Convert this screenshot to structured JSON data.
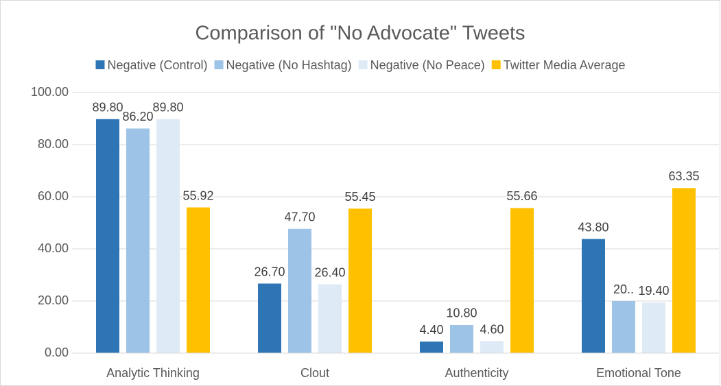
{
  "chart_data": {
    "type": "bar",
    "title": "Comparison of \"No Advocate\" Tweets",
    "categories": [
      "Analytic Thinking",
      "Clout",
      "Authenticity",
      "Emotional Tone"
    ],
    "series": [
      {
        "name": "Negative (Control)",
        "color": "#2e75b6",
        "values": [
          89.8,
          26.7,
          4.4,
          43.8
        ],
        "value_labels": [
          "89.80",
          "26.70",
          "4.40",
          "43.80"
        ]
      },
      {
        "name": "Negative (No Hashtag)",
        "color": "#9dc3e6",
        "values": [
          86.2,
          47.7,
          10.8,
          20
        ],
        "value_labels": [
          "86.20",
          "47.70",
          "10.80",
          "20.."
        ]
      },
      {
        "name": "Negative (No Peace)",
        "color": "#deebf7",
        "values": [
          89.8,
          26.4,
          4.6,
          19.4
        ],
        "value_labels": [
          "89.80",
          "26.40",
          "4.60",
          "19.40"
        ]
      },
      {
        "name": "Twitter Media Average",
        "color": "#ffc000",
        "values": [
          55.92,
          55.45,
          55.66,
          63.35
        ],
        "value_labels": [
          "55.92",
          "55.45",
          "55.66",
          "63.35"
        ]
      }
    ],
    "ylim": [
      0,
      100
    ],
    "yticks": [
      {
        "value": 0,
        "label": "0.00"
      },
      {
        "value": 20,
        "label": "20.00"
      },
      {
        "value": 40,
        "label": "40.00"
      },
      {
        "value": 60,
        "label": "60.00"
      },
      {
        "value": 80,
        "label": "80.00"
      },
      {
        "value": 100,
        "label": "100.00"
      }
    ],
    "grid": true,
    "legend": "top"
  }
}
